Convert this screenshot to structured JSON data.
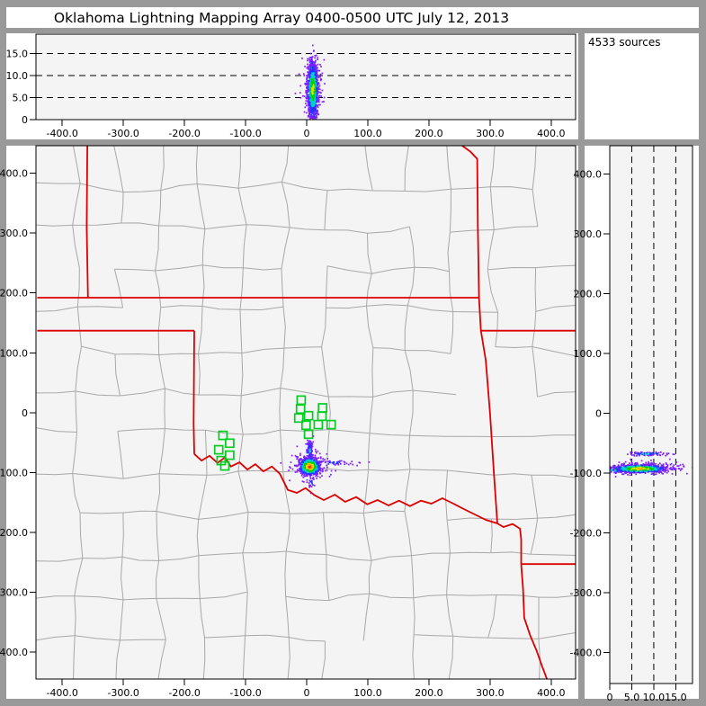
{
  "title": "Oklahoma Lightning Mapping Array   0400-0500 UTC  July 12, 2013",
  "sources_label": "4533 sources",
  "colors": {
    "chrome": "#999999",
    "panel_bg": "#ffffff",
    "plot_bg": "#f4f4f4",
    "axis": "#000000",
    "county_line": "#a8a8a8",
    "state_border": "#dd0000",
    "station": "#00cc22",
    "density_palette": {
      "red": "#ff1e00",
      "orange": "#ff9a00",
      "yellow": "#e2e200",
      "green": "#00cc00",
      "cyan": "#00cfcf",
      "blue": "#2633ff",
      "purple": "#7d1fff"
    }
  },
  "chart_data": [
    {
      "id": "altitude-vs-eastwest",
      "type": "scatter",
      "title": "",
      "xlabel": "",
      "ylabel": "",
      "x_range": [
        -443,
        440
      ],
      "y_range": [
        0,
        19.4
      ],
      "x_ticks": {
        "values": [
          -400,
          -300,
          -200,
          -100,
          0,
          100,
          200,
          300,
          400
        ],
        "labels": [
          "-400.0",
          "-300.0",
          "-200.0",
          "-100.0",
          "0",
          "100.0",
          "200.0",
          "300.0",
          "400.0"
        ]
      },
      "y_ticks": {
        "values": [
          0,
          5,
          10,
          15
        ],
        "labels": [
          "0",
          "5.0",
          "10.0",
          "15.0"
        ]
      },
      "gridlines_y": [
        5,
        10,
        15
      ],
      "clusters": [
        {
          "cx": 10,
          "cy": 7.0,
          "sx": 8.0,
          "sy": 3.4,
          "n": 260,
          "palette": "cold",
          "seed": 11
        },
        {
          "cx": 9,
          "cy": 11.8,
          "sx": 2.6,
          "sy": 1.1,
          "n": 90,
          "palette": "cold2",
          "seed": 22
        },
        {
          "cx": 11,
          "cy": 1.6,
          "sx": 3.0,
          "sy": 0.8,
          "n": 120,
          "palette": "mid",
          "seed": 33
        },
        {
          "cx": 10,
          "cy": 6.8,
          "sx": 4.0,
          "sy": 2.8,
          "n": 800,
          "palette": "warm",
          "seed": 44
        }
      ]
    },
    {
      "id": "plan-view-map",
      "type": "scatter",
      "title": "",
      "xlabel": "",
      "ylabel": "",
      "x_range": [
        -443,
        440
      ],
      "y_range": [
        -445,
        446
      ],
      "x_ticks": {
        "values": [
          -400,
          -300,
          -200,
          -100,
          0,
          100,
          200,
          300,
          400
        ],
        "labels": [
          "-400.0",
          "-300.0",
          "-200.0",
          "-100.0",
          "0",
          "100.0",
          "200.0",
          "300.0",
          "400.0"
        ]
      },
      "y_ticks": {
        "values": [
          400,
          300,
          200,
          100,
          0,
          -100,
          -200,
          -300,
          -400
        ],
        "labels": [
          "400.0",
          "300.0",
          "200.0",
          "100.0",
          "0",
          "-100.0",
          "-200.0",
          "-300.0",
          "-400.0"
        ]
      },
      "stations_km": [
        [
          -9,
          21
        ],
        [
          -10,
          6
        ],
        [
          3,
          -5
        ],
        [
          -13,
          -9
        ],
        [
          26,
          8
        ],
        [
          25,
          -6
        ],
        [
          19,
          -20
        ],
        [
          40,
          -20
        ],
        [
          -1,
          -21
        ],
        [
          3,
          -36
        ],
        [
          -137,
          -38
        ],
        [
          -126,
          -51
        ],
        [
          -144,
          -62
        ],
        [
          -126,
          -71
        ],
        [
          -140,
          -80
        ],
        [
          -134,
          -89
        ]
      ],
      "state_borders_km": [
        [
          [
            -359,
            447
          ],
          [
            -360,
            310
          ],
          [
            -358,
            192
          ]
        ],
        [
          [
            -441,
            192
          ],
          [
            282,
            192
          ]
        ],
        [
          [
            253,
            447
          ],
          [
            268,
            436
          ],
          [
            279,
            424
          ],
          [
            280,
            312
          ],
          [
            282,
            192
          ],
          [
            285,
            137
          ],
          [
            293,
            88
          ],
          [
            300,
            -2
          ],
          [
            306,
            -95
          ],
          [
            312,
            -185
          ]
        ],
        [
          [
            285,
            137
          ],
          [
            441,
            137
          ]
        ],
        [
          [
            -441,
            137
          ],
          [
            -184,
            137
          ]
        ],
        [
          [
            -184,
            137
          ],
          [
            -185,
            -18
          ],
          [
            -184,
            -69
          ]
        ],
        [
          [
            -184,
            -69
          ],
          [
            -172,
            -80
          ],
          [
            -159,
            -72
          ],
          [
            -146,
            -84
          ],
          [
            -134,
            -75
          ],
          [
            -124,
            -90
          ],
          [
            -110,
            -83
          ],
          [
            -97,
            -95
          ],
          [
            -84,
            -86
          ],
          [
            -71,
            -98
          ],
          [
            -57,
            -90
          ],
          [
            -44,
            -102
          ],
          [
            -31,
            -129
          ],
          [
            -16,
            -134
          ],
          [
            -2,
            -126
          ],
          [
            13,
            -138
          ],
          [
            28,
            -146
          ],
          [
            46,
            -137
          ],
          [
            63,
            -149
          ],
          [
            81,
            -141
          ],
          [
            99,
            -153
          ],
          [
            116,
            -146
          ],
          [
            134,
            -155
          ],
          [
            151,
            -147
          ],
          [
            169,
            -156
          ],
          [
            187,
            -147
          ],
          [
            204,
            -152
          ],
          [
            222,
            -143
          ],
          [
            240,
            -152
          ],
          [
            257,
            -161
          ],
          [
            275,
            -170
          ],
          [
            293,
            -179
          ],
          [
            312,
            -185
          ]
        ],
        [
          [
            312,
            -185
          ],
          [
            322,
            -191
          ],
          [
            337,
            -186
          ],
          [
            349,
            -194
          ],
          [
            351,
            -212
          ],
          [
            351,
            -253
          ]
        ],
        [
          [
            351,
            -253
          ],
          [
            441,
            -253
          ]
        ],
        [
          [
            351,
            -253
          ],
          [
            354,
            -295
          ],
          [
            356,
            -343
          ],
          [
            366,
            -373
          ],
          [
            376,
            -397
          ],
          [
            385,
            -423
          ],
          [
            393,
            -445
          ]
        ]
      ],
      "clusters": [
        {
          "cx": 5,
          "cy": -89,
          "sx": 15,
          "sy": 11,
          "n": 170,
          "palette": "cold",
          "seed": 55
        },
        {
          "cx": 42,
          "cy": -84,
          "sx": 22,
          "sy": 2.2,
          "n": 50,
          "palette": "cold",
          "seed": 66
        },
        {
          "cx": 5,
          "cy": -63,
          "sx": 2.2,
          "sy": 10,
          "n": 140,
          "palette": "cold2",
          "seed": 77
        },
        {
          "cx": 8,
          "cy": -117,
          "sx": 3,
          "sy": 7,
          "n": 26,
          "palette": "cold",
          "seed": 88
        },
        {
          "cx": 5,
          "cy": -90,
          "sx": 8,
          "sy": 7,
          "n": 650,
          "palette": "hot",
          "seed": 99
        }
      ]
    },
    {
      "id": "altitude-vs-northsouth",
      "type": "scatter",
      "title": "",
      "xlabel": "",
      "ylabel": "",
      "x_range": [
        0,
        18.8
      ],
      "y_range": [
        -452,
        447
      ],
      "x_ticks": {
        "values": [
          0,
          5,
          10,
          15
        ],
        "labels": [
          "0",
          "5.0",
          "10.0",
          "15.0"
        ]
      },
      "y_ticks": {
        "values": [
          400,
          300,
          200,
          100,
          0,
          -100,
          -200,
          -300,
          -400
        ],
        "labels": [
          "400.0",
          "300.0",
          "200.0",
          "100.0",
          "0",
          "-100.0",
          "-200.0",
          "-300.0",
          "-400.0"
        ]
      },
      "gridlines_x": [
        5,
        10,
        15
      ],
      "clusters": [
        {
          "cx": 7,
          "cy": -92,
          "sx": 4.8,
          "sy": 5.5,
          "n": 240,
          "palette": "cold",
          "seed": 101
        },
        {
          "cx": 8.5,
          "cy": -68,
          "sx": 2.2,
          "sy": 1.7,
          "n": 90,
          "palette": "cold2",
          "seed": 102
        },
        {
          "cx": 1.2,
          "cy": -95,
          "sx": 1.3,
          "sy": 2.3,
          "n": 90,
          "palette": "mid",
          "seed": 103
        },
        {
          "cx": 6.8,
          "cy": -93,
          "sx": 3.0,
          "sy": 3.2,
          "n": 700,
          "palette": "hot2",
          "seed": 104
        }
      ]
    }
  ],
  "palettes": {
    "hot": [
      [
        0.3,
        "red"
      ],
      [
        0.55,
        "orange"
      ],
      [
        0.85,
        "yellow"
      ],
      [
        1.2,
        "green"
      ],
      [
        1.6,
        "cyan"
      ],
      [
        2.05,
        "blue"
      ],
      [
        9,
        "purple"
      ]
    ],
    "hot2": [
      [
        0.35,
        "orange"
      ],
      [
        0.7,
        "yellow"
      ],
      [
        1.05,
        "green"
      ],
      [
        1.5,
        "cyan"
      ],
      [
        1.95,
        "blue"
      ],
      [
        9,
        "purple"
      ]
    ],
    "warm": [
      [
        0.5,
        "yellow"
      ],
      [
        0.95,
        "green"
      ],
      [
        1.45,
        "cyan"
      ],
      [
        1.9,
        "blue"
      ],
      [
        9,
        "purple"
      ]
    ],
    "mid": [
      [
        0.45,
        "green"
      ],
      [
        0.95,
        "cyan"
      ],
      [
        1.5,
        "blue"
      ],
      [
        9,
        "purple"
      ]
    ],
    "cold2": [
      [
        0.55,
        "cyan"
      ],
      [
        1.15,
        "blue"
      ],
      [
        9,
        "purple"
      ]
    ],
    "cold": [
      [
        0.9,
        "blue"
      ],
      [
        9,
        "purple"
      ]
    ]
  }
}
